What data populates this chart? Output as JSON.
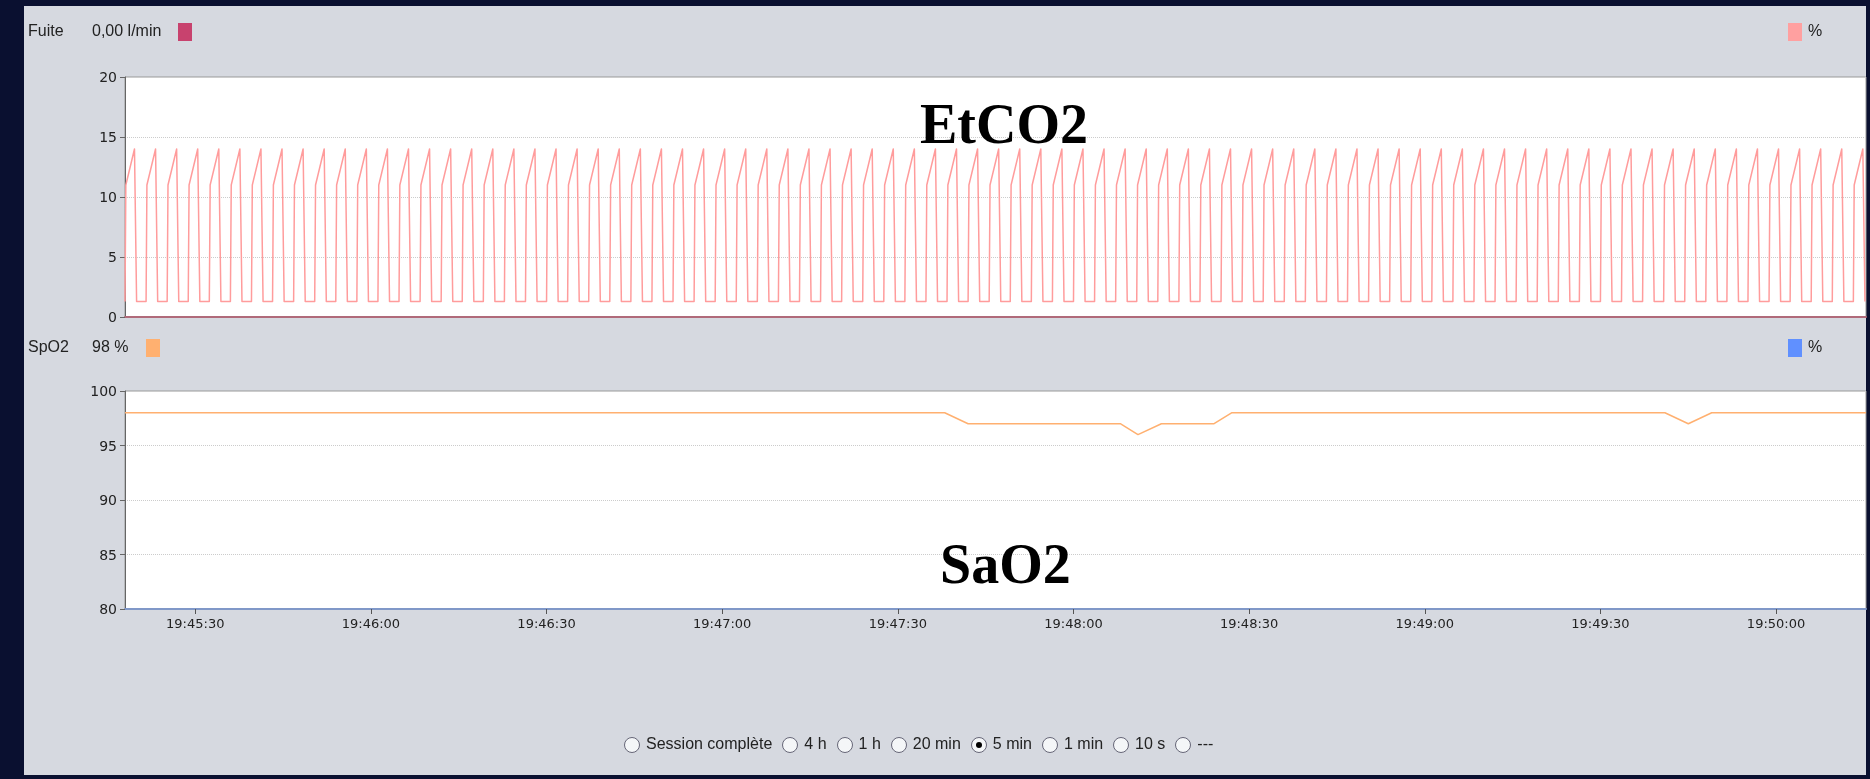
{
  "chart_data": [
    {
      "type": "line",
      "annotations": [
        "Fuite",
        "0,00 l/min",
        "%",
        "EtCO2"
      ],
      "xlim": [
        19.755,
        19.8376
      ],
      "ylim": [
        0,
        20
      ],
      "yticks": [
        0,
        5,
        10,
        15,
        20
      ],
      "grid": "y",
      "tick_labels": "y",
      "series": [
        {
          "color": "#ff9c9c",
          "x": [
            19.755,
            19.75504,
            19.75545,
            19.75555,
            19.756,
            19.75604,
            19.75645,
            19.75655,
            19.757,
            19.75704,
            19.75745,
            19.75755,
            19.758,
            19.75804,
            19.75845,
            19.75855,
            19.759,
            19.75904,
            19.75945,
            19.75955,
            19.76,
            19.76004,
            19.76045,
            19.76055,
            19.761,
            19.76104,
            19.76145,
            19.76155,
            19.762,
            19.76204,
            19.76245,
            19.76255,
            19.763,
            19.76304,
            19.76345,
            19.76355,
            19.764,
            19.76404,
            19.76445,
            19.76455,
            19.765,
            19.76504,
            19.76545,
            19.76555,
            19.766,
            19.76604,
            19.76645,
            19.76655,
            19.767,
            19.76704,
            19.76745,
            19.76755,
            19.768,
            19.76804,
            19.76845,
            19.76855,
            19.769,
            19.76904,
            19.76945,
            19.76955,
            19.77,
            19.77004,
            19.77045,
            19.77055,
            19.771,
            19.77104,
            19.77145,
            19.77155,
            19.772,
            19.77204,
            19.77245,
            19.77255,
            19.773,
            19.77304,
            19.77345,
            19.77355,
            19.774,
            19.77404,
            19.77445,
            19.77455,
            19.775,
            19.77504,
            19.77545,
            19.77555,
            19.776,
            19.77604,
            19.77645,
            19.77655,
            19.777,
            19.77704,
            19.77745,
            19.77755,
            19.778,
            19.77804,
            19.77845,
            19.77855,
            19.779,
            19.77904,
            19.77945,
            19.77955,
            19.78,
            19.78004,
            19.78045,
            19.78055,
            19.781,
            19.78104,
            19.78145,
            19.78155,
            19.782,
            19.78204,
            19.78245,
            19.78255,
            19.783,
            19.78304,
            19.78345,
            19.78355,
            19.784,
            19.78404,
            19.78445,
            19.78455,
            19.785,
            19.78504,
            19.78545,
            19.78555,
            19.786,
            19.78604,
            19.78645,
            19.78655,
            19.787,
            19.78704,
            19.78745,
            19.78755,
            19.788,
            19.78804,
            19.78845,
            19.78855,
            19.789,
            19.78904,
            19.78945,
            19.78955,
            19.79,
            19.79004,
            19.79045,
            19.79055,
            19.791,
            19.79104,
            19.79145,
            19.79155,
            19.792,
            19.79204,
            19.79245,
            19.79255,
            19.793,
            19.79304,
            19.79345,
            19.79355,
            19.794,
            19.79404,
            19.79445,
            19.79455,
            19.795,
            19.79504,
            19.79545,
            19.79555,
            19.796,
            19.79604,
            19.79645,
            19.79655,
            19.797,
            19.79704,
            19.79745,
            19.79755,
            19.798,
            19.79804,
            19.79845,
            19.79855,
            19.799,
            19.79904,
            19.79945,
            19.79955,
            19.8,
            19.80004,
            19.80045,
            19.80055,
            19.801,
            19.80104,
            19.80145,
            19.80155,
            19.802,
            19.80204,
            19.80245,
            19.80255,
            19.803,
            19.80304,
            19.80345,
            19.80355,
            19.804,
            19.80404,
            19.80445,
            19.80455,
            19.805,
            19.80504,
            19.80545,
            19.80555,
            19.806,
            19.80604,
            19.80645,
            19.80655,
            19.807,
            19.80704,
            19.80745,
            19.80755,
            19.808,
            19.80804,
            19.80845,
            19.80855,
            19.809,
            19.80904,
            19.80945,
            19.80955,
            19.81,
            19.81004,
            19.81045,
            19.81055,
            19.811,
            19.81104,
            19.81145,
            19.81155,
            19.812,
            19.81204,
            19.81245,
            19.81255,
            19.813,
            19.81304,
            19.81345,
            19.81355,
            19.814,
            19.81404,
            19.81445,
            19.81455,
            19.815,
            19.81504,
            19.81545,
            19.81555,
            19.816,
            19.81604,
            19.81645,
            19.81655,
            19.817,
            19.81704,
            19.81745,
            19.81755,
            19.818,
            19.81804,
            19.81845,
            19.81855,
            19.819,
            19.81904,
            19.81945,
            19.81955,
            19.82,
            19.82004,
            19.82045,
            19.82055,
            19.821,
            19.82104,
            19.82145,
            19.82155,
            19.822,
            19.82204,
            19.82245,
            19.82255,
            19.823,
            19.82304,
            19.82345,
            19.82355,
            19.824,
            19.82404,
            19.82445,
            19.82455,
            19.825,
            19.82504,
            19.82545,
            19.82555,
            19.826,
            19.82604,
            19.82645,
            19.82655,
            19.827,
            19.82704,
            19.82745,
            19.82755,
            19.828,
            19.82804,
            19.82845,
            19.82855,
            19.829,
            19.82904,
            19.82945,
            19.82955,
            19.83,
            19.83004,
            19.83045,
            19.83055,
            19.831,
            19.83104,
            19.83145,
            19.83155,
            19.832,
            19.83204,
            19.83245,
            19.83255,
            19.833,
            19.83304,
            19.83345,
            19.83355,
            19.834,
            19.83404,
            19.83445,
            19.83455,
            19.835,
            19.83504,
            19.83545,
            19.83555,
            19.836,
            19.83604,
            19.83645,
            19.83655,
            19.837,
            19.83704,
            19.83745,
            19.83755
          ],
          "values": [
            1.3,
            11,
            14,
            1.3,
            1.3,
            11,
            14,
            1.3,
            1.3,
            11,
            14,
            1.3,
            1.3,
            11,
            14,
            1.3,
            1.3,
            11,
            14,
            1.3,
            1.3,
            11,
            14,
            1.3,
            1.3,
            11,
            14,
            1.3,
            1.3,
            11,
            14,
            1.3,
            1.3,
            11,
            14,
            1.3,
            1.3,
            11,
            14,
            1.3,
            1.3,
            11,
            14,
            1.3,
            1.3,
            11,
            14,
            1.3,
            1.3,
            11,
            14,
            1.3,
            1.3,
            11,
            14,
            1.3,
            1.3,
            11,
            14,
            1.3,
            1.3,
            11,
            14,
            1.3,
            1.3,
            11,
            14,
            1.3,
            1.3,
            11,
            14,
            1.3,
            1.3,
            11,
            14,
            1.3,
            1.3,
            11,
            14,
            1.3,
            1.3,
            11,
            14,
            1.3,
            1.3,
            11,
            14,
            1.3,
            1.3,
            11,
            14,
            1.3,
            1.3,
            11,
            14,
            1.3,
            1.3,
            11,
            14,
            1.3,
            1.3,
            11,
            14,
            1.3,
            1.3,
            11,
            14,
            1.3,
            1.3,
            11,
            14,
            1.3,
            1.3,
            11,
            14,
            1.3,
            1.3,
            11,
            14,
            1.3,
            1.3,
            11,
            14,
            1.3,
            1.3,
            11,
            14,
            1.3,
            1.3,
            11,
            14,
            1.3,
            1.3,
            11,
            14,
            1.3,
            1.3,
            11,
            14,
            1.3,
            1.3,
            11,
            14,
            1.3,
            1.3,
            11,
            14,
            1.3,
            1.3,
            11,
            14,
            1.3,
            1.3,
            11,
            14,
            1.3,
            1.3,
            11,
            14,
            1.3,
            1.3,
            11,
            14,
            1.3,
            1.3,
            11,
            14,
            1.3,
            1.3,
            11,
            14,
            1.3,
            1.3,
            11,
            14,
            1.3,
            1.3,
            11,
            14,
            1.3,
            1.3,
            11,
            14,
            1.3,
            1.3,
            11,
            14,
            1.3,
            1.3,
            11,
            14,
            1.3,
            1.3,
            11,
            14,
            1.3,
            1.3,
            11,
            14,
            1.3,
            1.3,
            11,
            14,
            1.3,
            1.3,
            11,
            14,
            1.3,
            1.3,
            11,
            14,
            1.3,
            1.3,
            11,
            14,
            1.3,
            1.3,
            11,
            14,
            1.3,
            1.3,
            11,
            14,
            1.3,
            1.3,
            11,
            14,
            1.3,
            1.3,
            11,
            14,
            1.3,
            1.3,
            11,
            14,
            1.3,
            1.3,
            11,
            14,
            1.3,
            1.3,
            11,
            14,
            1.3,
            1.3,
            11,
            14,
            1.3,
            1.3,
            11,
            14,
            1.3,
            1.3,
            11,
            14,
            1.3,
            1.3,
            11,
            14,
            1.3,
            1.3,
            11,
            14,
            1.3,
            1.3,
            11,
            14,
            1.3,
            1.3,
            11,
            14,
            1.3,
            1.3,
            11,
            14,
            1.3,
            1.3,
            11,
            14,
            1.3,
            1.3,
            11,
            14,
            1.3,
            1.3,
            11,
            14,
            1.3,
            1.3,
            11,
            14,
            1.3,
            1.3,
            11,
            14,
            1.3,
            1.3,
            11,
            14,
            1.3,
            1.3,
            11,
            14,
            1.3,
            1.3,
            11,
            14,
            1.3,
            1.3,
            11,
            14,
            1.3,
            1.3,
            11,
            14,
            1.3,
            1.3,
            11,
            14,
            1.3,
            1.3,
            11,
            14,
            1.3,
            1.3,
            11,
            14,
            1.3,
            1.3,
            11,
            14,
            1.3
          ]
        }
      ]
    },
    {
      "type": "line",
      "annotations": [
        "SpO2",
        "98 %",
        "%",
        "SaO2",
        "Session complète",
        "4 h",
        "1 h",
        "20 min",
        "5 min",
        "1 min",
        "10 s",
        "---"
      ],
      "xlim": [
        19.755,
        19.8376
      ],
      "ylim": [
        80,
        100
      ],
      "yticks": [
        80,
        85,
        90,
        95,
        100
      ],
      "grid": "y",
      "xticks": [
        {
          "value": 19.758333,
          "label": "19:45:30"
        },
        {
          "value": 19.766667,
          "label": "19:46:00"
        },
        {
          "value": 19.775,
          "label": "19:46:30"
        },
        {
          "value": 19.783333,
          "label": "19:47:00"
        },
        {
          "value": 19.791667,
          "label": "19:47:30"
        },
        {
          "value": 19.8,
          "label": "19:48:00"
        },
        {
          "value": 19.808333,
          "label": "19:48:30"
        },
        {
          "value": 19.816667,
          "label": "19:49:00"
        },
        {
          "value": 19.825,
          "label": "19:49:30"
        },
        {
          "value": 19.833333,
          "label": "19:50:00"
        }
      ],
      "series": [
        {
          "color": "#ffb070",
          "x": [
            19.755,
            19.79389,
            19.795,
            19.80222,
            19.80306,
            19.80417,
            19.80667,
            19.8075,
            19.82806,
            19.82917,
            19.83028,
            19.8376
          ],
          "values": [
            98,
            98,
            97,
            97,
            96,
            97,
            97,
            98,
            98,
            97,
            98,
            98
          ]
        }
      ]
    }
  ]
}
